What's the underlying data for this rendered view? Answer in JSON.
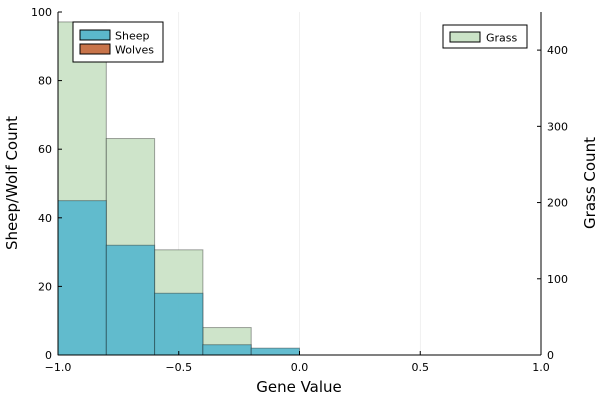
{
  "chart_data": {
    "type": "bar",
    "subtype": "histogram",
    "title": "",
    "xlabel": "Gene Value",
    "ylabel": "Sheep/Wolf Count",
    "y2label": "Grass Count",
    "xlim": [
      -1.0,
      1.0
    ],
    "ylim": [
      0,
      100
    ],
    "y2lim": [
      0,
      450
    ],
    "x_ticks": [
      -1.0,
      -0.5,
      0.0,
      0.5,
      1.0
    ],
    "x_tick_labels": [
      "−1.0",
      "−0.5",
      "0.0",
      "0.5",
      "1.0"
    ],
    "y_ticks": [
      0,
      20,
      40,
      60,
      80,
      100
    ],
    "y_tick_labels": [
      "0",
      "20",
      "40",
      "60",
      "80",
      "100"
    ],
    "y2_ticks": [
      0,
      100,
      200,
      300,
      400
    ],
    "y2_tick_labels": [
      "0",
      "100",
      "200",
      "300",
      "400"
    ],
    "grid": true,
    "bin_edges": [
      -1.0,
      -0.8,
      -0.6,
      -0.4,
      -0.2,
      0.0
    ],
    "series": [
      {
        "name": "Sheep",
        "axis": "left",
        "color": "#5bb8cc",
        "values": [
          45,
          32,
          18,
          3,
          2
        ]
      },
      {
        "name": "Wolves",
        "axis": "left",
        "color": "#c8744a",
        "values": [
          0,
          0,
          0,
          0,
          0
        ]
      },
      {
        "name": "Grass",
        "axis": "right",
        "color": "#cbe3c7",
        "values": [
          437,
          284,
          138,
          36,
          0
        ]
      }
    ],
    "legends": [
      {
        "placement": "top-left",
        "entries": [
          "Sheep",
          "Wolves"
        ]
      },
      {
        "placement": "top-right",
        "entries": [
          "Grass"
        ]
      }
    ]
  }
}
